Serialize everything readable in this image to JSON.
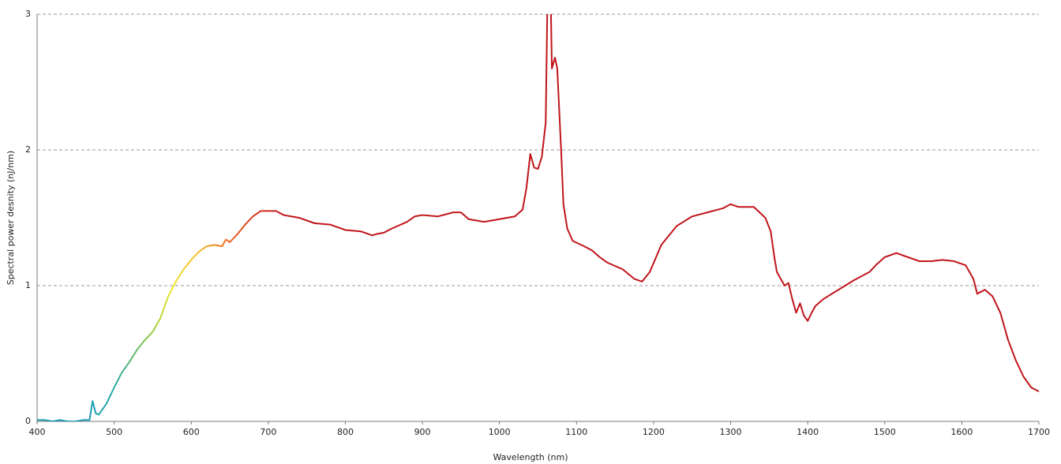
{
  "chart_data": {
    "type": "line",
    "x_label": "Wavelength (nm)",
    "y_label": "Spectral power desnity (nJ/nm)",
    "x": [
      400,
      410,
      420,
      430,
      440,
      450,
      460,
      468,
      472,
      476,
      480,
      485,
      490,
      500,
      510,
      520,
      530,
      540,
      550,
      560,
      570,
      580,
      590,
      600,
      610,
      620,
      630,
      640,
      645,
      650,
      660,
      670,
      680,
      690,
      700,
      710,
      720,
      740,
      760,
      780,
      800,
      820,
      835,
      840,
      850,
      860,
      880,
      890,
      900,
      920,
      940,
      950,
      960,
      980,
      1000,
      1020,
      1030,
      1035,
      1040,
      1045,
      1050,
      1055,
      1060,
      1062,
      1066,
      1068,
      1072,
      1075,
      1080,
      1083,
      1088,
      1095,
      1110,
      1120,
      1130,
      1140,
      1160,
      1175,
      1185,
      1195,
      1210,
      1230,
      1250,
      1270,
      1290,
      1300,
      1310,
      1330,
      1345,
      1352,
      1357,
      1360,
      1365,
      1370,
      1375,
      1380,
      1385,
      1390,
      1395,
      1400,
      1405,
      1410,
      1420,
      1440,
      1460,
      1480,
      1490,
      1500,
      1515,
      1530,
      1545,
      1560,
      1575,
      1590,
      1605,
      1615,
      1620,
      1630,
      1640,
      1650,
      1660,
      1670,
      1680,
      1690,
      1700
    ],
    "series": [
      {
        "color": "#c0141a",
        "values": [
          0.01,
          0.01,
          0.0,
          0.01,
          0.0,
          0.0,
          0.01,
          0.01,
          0.15,
          0.06,
          0.05,
          0.09,
          0.13,
          0.25,
          0.36,
          0.44,
          0.53,
          0.6,
          0.66,
          0.76,
          0.92,
          1.03,
          1.12,
          1.19,
          1.25,
          1.29,
          1.3,
          1.29,
          1.34,
          1.32,
          1.38,
          1.45,
          1.51,
          1.55,
          1.55,
          1.55,
          1.52,
          1.5,
          1.46,
          1.45,
          1.41,
          1.4,
          1.37,
          1.38,
          1.39,
          1.42,
          1.47,
          1.51,
          1.52,
          1.51,
          1.54,
          1.54,
          1.49,
          1.47,
          1.49,
          1.51,
          1.56,
          1.72,
          1.97,
          1.87,
          1.86,
          1.95,
          2.2,
          3.0,
          3.3,
          2.6,
          2.68,
          2.6,
          2.0,
          1.6,
          1.42,
          1.33,
          1.29,
          1.26,
          1.21,
          1.17,
          1.12,
          1.05,
          1.03,
          1.1,
          1.3,
          1.44,
          1.51,
          1.54,
          1.57,
          1.6,
          1.58,
          1.58,
          1.5,
          1.4,
          1.2,
          1.1,
          1.05,
          1.0,
          1.02,
          0.9,
          0.8,
          0.87,
          0.78,
          0.74,
          0.8,
          0.85,
          0.9,
          0.97,
          1.04,
          1.1,
          1.16,
          1.21,
          1.24,
          1.21,
          1.18,
          1.18,
          1.19,
          1.18,
          1.15,
          1.05,
          0.94,
          0.97,
          0.92,
          0.8,
          0.6,
          0.45,
          0.33,
          0.25,
          0.22
        ]
      }
    ],
    "gradient": [
      {
        "x": 470,
        "color": "#1a9fb4"
      },
      {
        "x": 500,
        "color": "#2aa8a8"
      },
      {
        "x": 540,
        "color": "#7cc34a"
      },
      {
        "x": 575,
        "color": "#f0e62a"
      },
      {
        "x": 610,
        "color": "#f5b82a"
      },
      {
        "x": 640,
        "color": "#ef7a25"
      },
      {
        "x": 680,
        "color": "#d83b1f"
      },
      {
        "x": 720,
        "color": "#c0141a"
      }
    ],
    "xlim": [
      400,
      1700
    ],
    "xticks": [
      400,
      500,
      600,
      700,
      800,
      900,
      1000,
      1100,
      1200,
      1300,
      1400,
      1500,
      1600,
      1700
    ],
    "ylim": [
      0,
      3
    ],
    "yticks": [
      0,
      1,
      2,
      3
    ],
    "grid": true
  }
}
